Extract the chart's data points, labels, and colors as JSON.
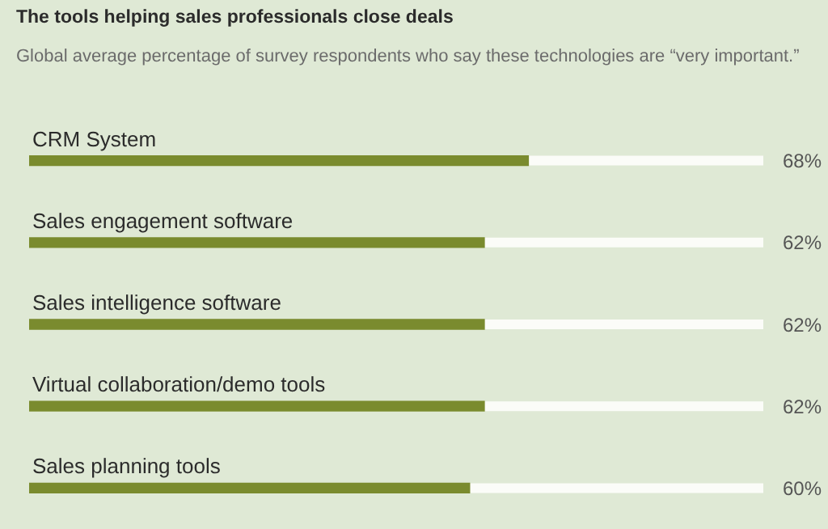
{
  "chart_data": {
    "type": "bar",
    "orientation": "horizontal",
    "title": "The tools helping sales professionals close deals",
    "subtitle": "Global average percentage of survey respondents who say these technologies are “very important.”",
    "categories": [
      "CRM System",
      "Sales engagement software",
      "Sales intelligence software",
      "Virtual collaboration/demo tools",
      "Sales planning tools"
    ],
    "values": [
      68,
      62,
      62,
      62,
      60
    ],
    "value_labels": [
      "68%",
      "62%",
      "62%",
      "62%",
      "60%"
    ],
    "color": "#7a8b2e",
    "xlim": [
      0,
      100
    ],
    "tick_labels": "y",
    "grid": false,
    "legend": false
  }
}
